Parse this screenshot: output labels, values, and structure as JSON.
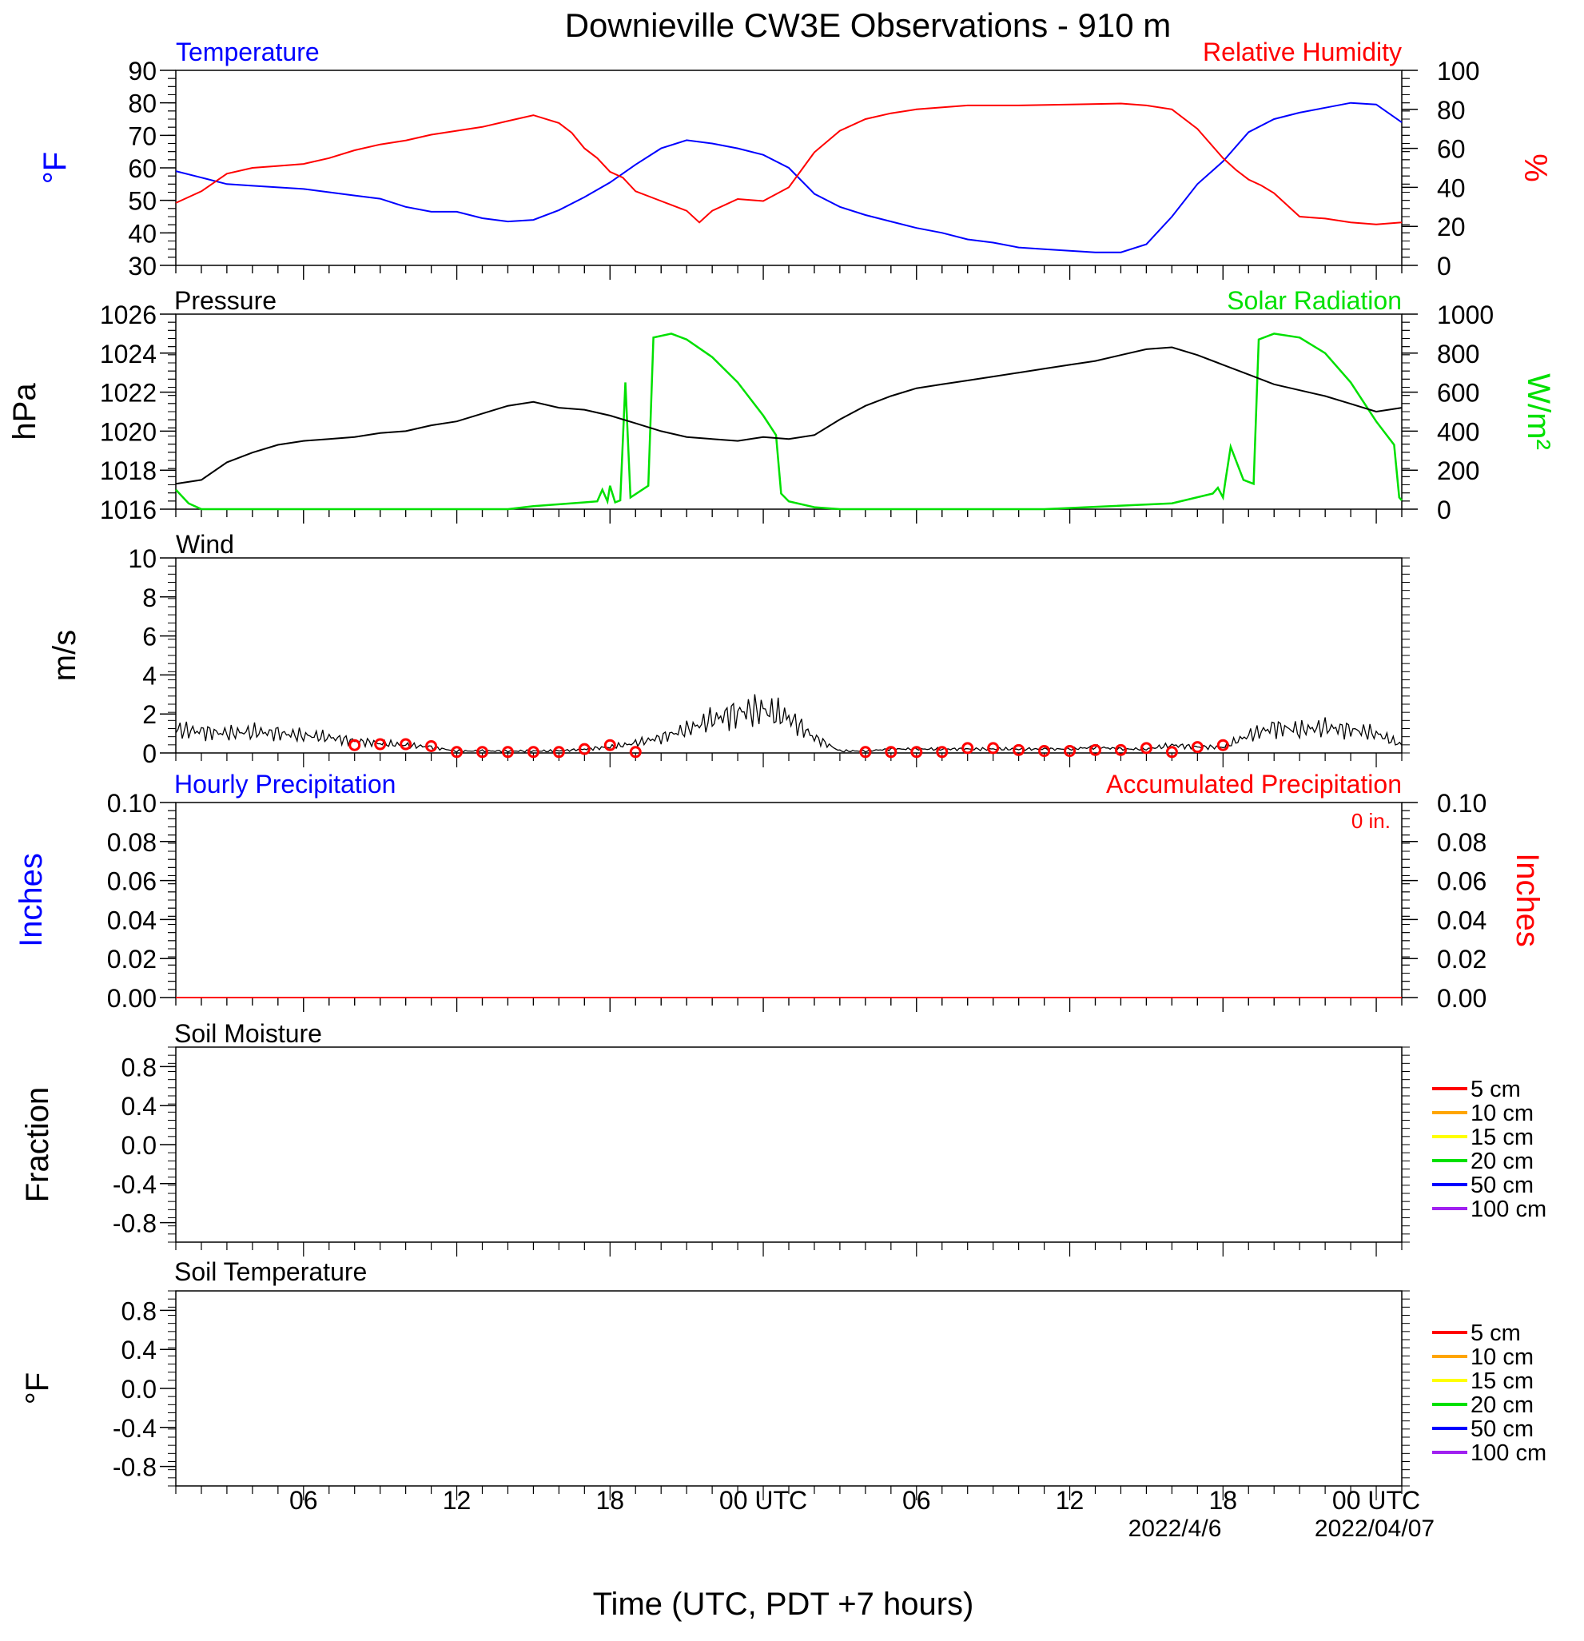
{
  "title": "Downieville CW3E Observations - 910 m",
  "colors": {
    "blue": "#0000ff",
    "red": "#ff0000",
    "green": "#00e000",
    "black": "#000000",
    "purple": "#a020f0",
    "orange": "#ffa500",
    "yellow": "#ffff00"
  },
  "x_axis": {
    "label": "Time (UTC, PDT +7 hours)",
    "ticks": [
      "06",
      "12",
      "18",
      "00 UTC",
      "06",
      "12",
      "18",
      "00 UTC"
    ],
    "dates": [
      "2022/4/6",
      "2022/04/07"
    ]
  },
  "panels": {
    "temp_rh": {
      "left_title": "Temperature",
      "right_title": "Relative Humidity",
      "left_unit": "°F",
      "right_unit": "%"
    },
    "pressure_solar": {
      "left_title": "Pressure",
      "right_title": "Solar Radiation",
      "left_unit": "hPa",
      "right_unit": "W/m²"
    },
    "wind": {
      "left_title": "Wind",
      "left_unit": "m/s"
    },
    "precip": {
      "left_title": "Hourly Precipitation",
      "right_title": "Accumulated Precipitation",
      "total": "0 in.",
      "left_unit": "Inches",
      "right_unit": "Inches"
    },
    "soil_moisture": {
      "left_title": "Soil Moisture",
      "left_unit": "Fraction"
    },
    "soil_temp": {
      "left_title": "Soil Temperature",
      "left_unit": "°F"
    }
  },
  "legend_depths": [
    "5 cm",
    "10 cm",
    "15 cm",
    "20 cm",
    "50 cm",
    "100 cm"
  ],
  "legend_colors": [
    "#ff0000",
    "#ffa500",
    "#ffff00",
    "#00e000",
    "#0000ff",
    "#a020f0"
  ],
  "chart_data": [
    {
      "type": "line",
      "x_unit": "hours since 00 UTC 2022/4/5",
      "xlim": [
        1,
        49
      ],
      "series": [
        {
          "name": "Temperature",
          "axis": "left",
          "color": "#0000ff",
          "x": [
            1,
            2,
            3,
            4,
            5,
            6,
            7,
            8,
            9,
            10,
            11,
            12,
            13,
            14,
            15,
            16,
            17,
            18,
            19,
            20,
            21,
            22,
            23,
            24,
            25,
            26,
            27,
            28,
            29,
            30,
            31,
            32,
            33,
            34,
            35,
            36,
            37,
            38,
            39,
            40,
            41,
            42,
            43,
            44,
            45,
            46,
            47,
            48,
            49
          ],
          "y": [
            59,
            57,
            55,
            54.5,
            54,
            53.5,
            52.5,
            51.5,
            50.5,
            48,
            46.5,
            46.5,
            44.5,
            43.5,
            44,
            47,
            51,
            55.5,
            61,
            66,
            68.5,
            67.5,
            66,
            64,
            60,
            52,
            48,
            45.5,
            43.5,
            41.5,
            40,
            38,
            37,
            35.5,
            35,
            34.5,
            34,
            34,
            36.5,
            45,
            55,
            62,
            71,
            75,
            77,
            78.5,
            80,
            79.5,
            74
          ]
        },
        {
          "name": "Relative Humidity",
          "axis": "right",
          "color": "#ff0000",
          "x": [
            1,
            2,
            3,
            4,
            5,
            6,
            7,
            8,
            9,
            10,
            11,
            12,
            13,
            14,
            15,
            16,
            16.5,
            17,
            17.5,
            18,
            18.5,
            19,
            20,
            21,
            21.5,
            22,
            23,
            24,
            25,
            26,
            27,
            28,
            29,
            30,
            32,
            34,
            36,
            38,
            39,
            40,
            41,
            42,
            42.5,
            43,
            43.5,
            44,
            45,
            46,
            47,
            48,
            49
          ],
          "x_note": "hours",
          "y": [
            32,
            38,
            47,
            50,
            51,
            52,
            55,
            59,
            62,
            64,
            67,
            69,
            71,
            74,
            77,
            73,
            68,
            60,
            55,
            48,
            45,
            38,
            33,
            28,
            22,
            28,
            34,
            33,
            40,
            58,
            69,
            75,
            78,
            80,
            82,
            82,
            82.5,
            83,
            82,
            80,
            70,
            55,
            49,
            44,
            41,
            37,
            25,
            24,
            22,
            21,
            22
          ]
        }
      ],
      "ylim_left": [
        30,
        90
      ],
      "ylim_right": [
        0,
        100
      ]
    },
    {
      "type": "line",
      "x_unit": "hours since 00 UTC 2022/4/5",
      "xlim": [
        1,
        49
      ],
      "series": [
        {
          "name": "Pressure",
          "axis": "left",
          "color": "#000000",
          "x": [
            1,
            2,
            3,
            4,
            5,
            6,
            7,
            8,
            9,
            10,
            11,
            12,
            13,
            14,
            15,
            16,
            17,
            18,
            19,
            20,
            21,
            22,
            23,
            24,
            25,
            26,
            27,
            28,
            29,
            30,
            31,
            32,
            33,
            34,
            35,
            36,
            37,
            38,
            39,
            40,
            41,
            42,
            43,
            44,
            45,
            46,
            47,
            48,
            49
          ],
          "y": [
            1017.3,
            1017.5,
            1018.4,
            1018.9,
            1019.3,
            1019.5,
            1019.6,
            1019.7,
            1019.9,
            1020.0,
            1020.3,
            1020.5,
            1020.9,
            1021.3,
            1021.5,
            1021.2,
            1021.1,
            1020.8,
            1020.4,
            1020.0,
            1019.7,
            1019.6,
            1019.5,
            1019.7,
            1019.6,
            1019.8,
            1020.6,
            1021.3,
            1021.8,
            1022.2,
            1022.4,
            1022.6,
            1022.8,
            1023.0,
            1023.2,
            1023.4,
            1023.6,
            1023.9,
            1024.2,
            1024.3,
            1023.9,
            1023.4,
            1022.9,
            1022.4,
            1022.1,
            1021.8,
            1021.4,
            1021.0,
            1021.2
          ]
        },
        {
          "name": "Solar Radiation",
          "axis": "right",
          "color": "#00e000",
          "x": [
            1,
            1.5,
            2,
            14,
            15,
            17,
            17.5,
            17.7,
            17.9,
            18,
            18.2,
            18.4,
            18.6,
            18.8,
            19.5,
            19.7,
            20.4,
            21,
            22,
            23,
            24,
            24.5,
            24.7,
            25,
            26,
            27,
            35,
            40,
            41.6,
            41.8,
            42.0,
            42.1,
            42.3,
            42.8,
            43.2,
            43.4,
            44,
            45,
            46,
            47,
            48,
            48.7,
            48.9,
            49
          ],
          "y": [
            100,
            30,
            0,
            0,
            15,
            35,
            40,
            100,
            40,
            120,
            35,
            45,
            650,
            60,
            120,
            880,
            900,
            870,
            780,
            650,
            480,
            380,
            80,
            40,
            10,
            0,
            0,
            30,
            80,
            110,
            60,
            150,
            320,
            150,
            130,
            870,
            900,
            880,
            800,
            650,
            450,
            330,
            60,
            45
          ]
        }
      ],
      "ylim_left": [
        1016,
        1026
      ],
      "ylim_right": [
        0,
        1000
      ]
    },
    {
      "type": "line",
      "x_unit": "hours since 00 UTC 2022/4/5",
      "xlim": [
        1,
        49
      ],
      "ylim": [
        0,
        10
      ],
      "series": [
        {
          "name": "Wind",
          "color": "#000000",
          "x": [
            1,
            2,
            3,
            4,
            5,
            6,
            7,
            8,
            9,
            10,
            11,
            12,
            13,
            14,
            15,
            16,
            17,
            18,
            19,
            20,
            21,
            22,
            23,
            24,
            25,
            26,
            27,
            28,
            29,
            30,
            31,
            32,
            33,
            34,
            35,
            36,
            37,
            38,
            39,
            40,
            41,
            42,
            43,
            44,
            45,
            46,
            47,
            48,
            49
          ],
          "y": [
            1.2,
            1.1,
            1.0,
            1.1,
            1.0,
            0.9,
            0.8,
            0.6,
            0.5,
            0.4,
            0.3,
            0.1,
            0.1,
            0.1,
            0.1,
            0.1,
            0.2,
            0.3,
            0.5,
            0.8,
            1.2,
            1.7,
            2.1,
            2.2,
            1.8,
            0.8,
            0.1,
            0.1,
            0.2,
            0.2,
            0.2,
            0.2,
            0.2,
            0.2,
            0.2,
            0.2,
            0.3,
            0.2,
            0.2,
            0.4,
            0.3,
            0.3,
            0.9,
            1.3,
            1.2,
            1.3,
            1.2,
            1.0,
            0.4
          ]
        },
        {
          "name": "Hourly wind",
          "color": "#ff0000",
          "x": [
            8,
            9,
            10,
            11,
            12,
            13,
            14,
            15,
            16,
            17,
            18,
            19,
            28,
            29,
            30,
            31,
            32,
            33,
            34,
            35,
            36,
            37,
            38,
            39,
            40,
            41,
            42
          ],
          "y": [
            0.4,
            0.45,
            0.45,
            0.35,
            0.05,
            0.05,
            0.05,
            0.05,
            0.05,
            0.2,
            0.4,
            0.05,
            0.05,
            0.05,
            0.05,
            0.05,
            0.25,
            0.25,
            0.15,
            0.1,
            0.1,
            0.15,
            0.15,
            0.25,
            0.05,
            0.3,
            0.4
          ]
        }
      ]
    },
    {
      "type": "line",
      "x_unit": "hours since 00 UTC 2022/4/5",
      "xlim": [
        1,
        49
      ],
      "ylim_left": [
        0,
        0.1
      ],
      "ylim_right": [
        0,
        0.1
      ],
      "series": [
        {
          "name": "Hourly Precipitation",
          "axis": "left",
          "color": "#0000ff",
          "x": [
            1,
            49
          ],
          "y": [
            0,
            0
          ]
        },
        {
          "name": "Accumulated Precipitation",
          "axis": "right",
          "color": "#ff0000",
          "x": [
            1,
            49
          ],
          "y": [
            0,
            0
          ]
        }
      ]
    },
    {
      "type": "line",
      "xlim": [
        1,
        49
      ],
      "ylim": [
        -1,
        1
      ],
      "series": []
    },
    {
      "type": "line",
      "xlim": [
        1,
        49
      ],
      "ylim": [
        -1,
        1
      ],
      "series": []
    }
  ],
  "axes": {
    "temp_left": [
      "30",
      "40",
      "50",
      "60",
      "70",
      "80",
      "90"
    ],
    "temp_right": [
      "0",
      "20",
      "40",
      "60",
      "80",
      "100"
    ],
    "press_left": [
      "1016",
      "1018",
      "1020",
      "1022",
      "1024",
      "1026"
    ],
    "press_right": [
      "0",
      "200",
      "400",
      "600",
      "800",
      "1000"
    ],
    "wind_left": [
      "0",
      "2",
      "4",
      "6",
      "8",
      "10"
    ],
    "precip": [
      "0.00",
      "0.02",
      "0.04",
      "0.06",
      "0.08",
      "0.10"
    ],
    "soil": [
      "-0.8",
      "-0.4",
      "0.0",
      "0.4",
      "0.8"
    ]
  }
}
